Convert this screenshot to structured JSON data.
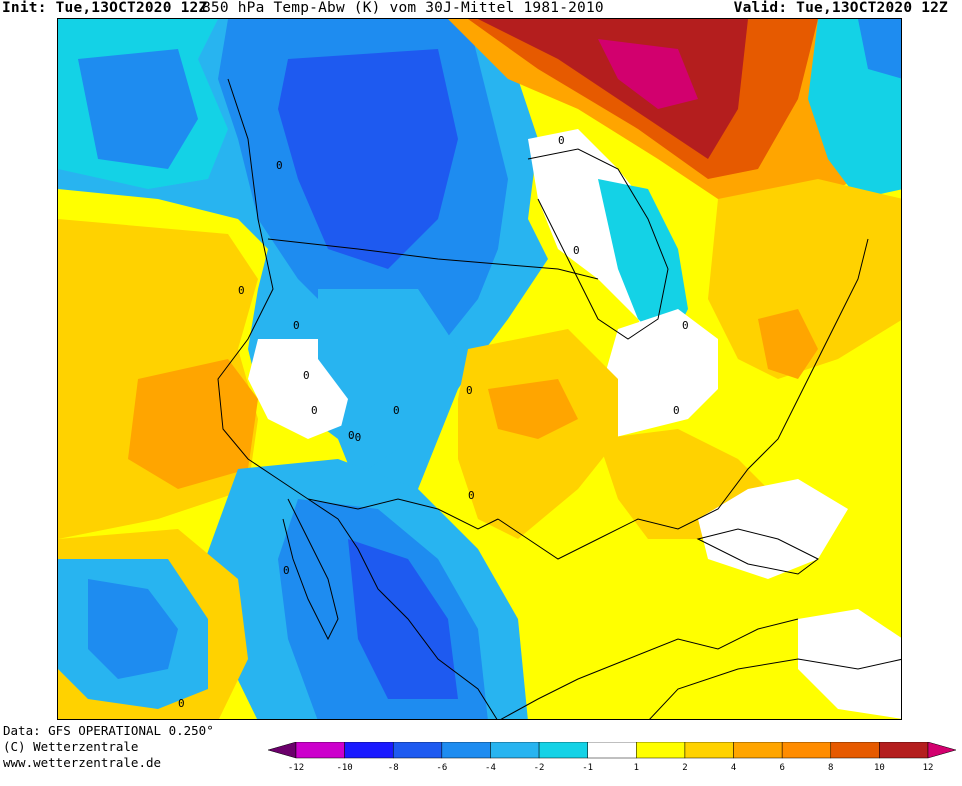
{
  "header": {
    "init": "Init: Tue,13OCT2020 12Z",
    "title": "850 hPa Temp-Abw (K) vom 30J-Mittel 1981-2010",
    "valid": "Valid: Tue,13OCT2020 12Z"
  },
  "footer": {
    "data_source": "Data: GFS OPERATIONAL 0.250°",
    "copyright": "(C) Wetterzentrale",
    "url": "www.wetterzentrale.de"
  },
  "legend": {
    "tick_labels": [
      "-12",
      "-10",
      "-8",
      "-6",
      "-4",
      "-2",
      "-1",
      "1",
      "2",
      "4",
      "6",
      "8",
      "10",
      "12"
    ],
    "colors": [
      "#6b006b",
      "#cc00cc",
      "#1a1aff",
      "#1e5af0",
      "#1e8cf0",
      "#28b4f0",
      "#14d2e6",
      "#ffffff",
      "#ffff00",
      "#ffd200",
      "#ffa500",
      "#ff8c00",
      "#e65a00",
      "#b41e1e",
      "#d2006e"
    ]
  },
  "map": {
    "region": "North America",
    "contour_labels": [
      "0",
      "0",
      "0",
      "0",
      "0",
      "0",
      "0",
      "0",
      "-0",
      "0",
      "0",
      "0",
      "0",
      "0",
      "0",
      "0"
    ]
  }
}
